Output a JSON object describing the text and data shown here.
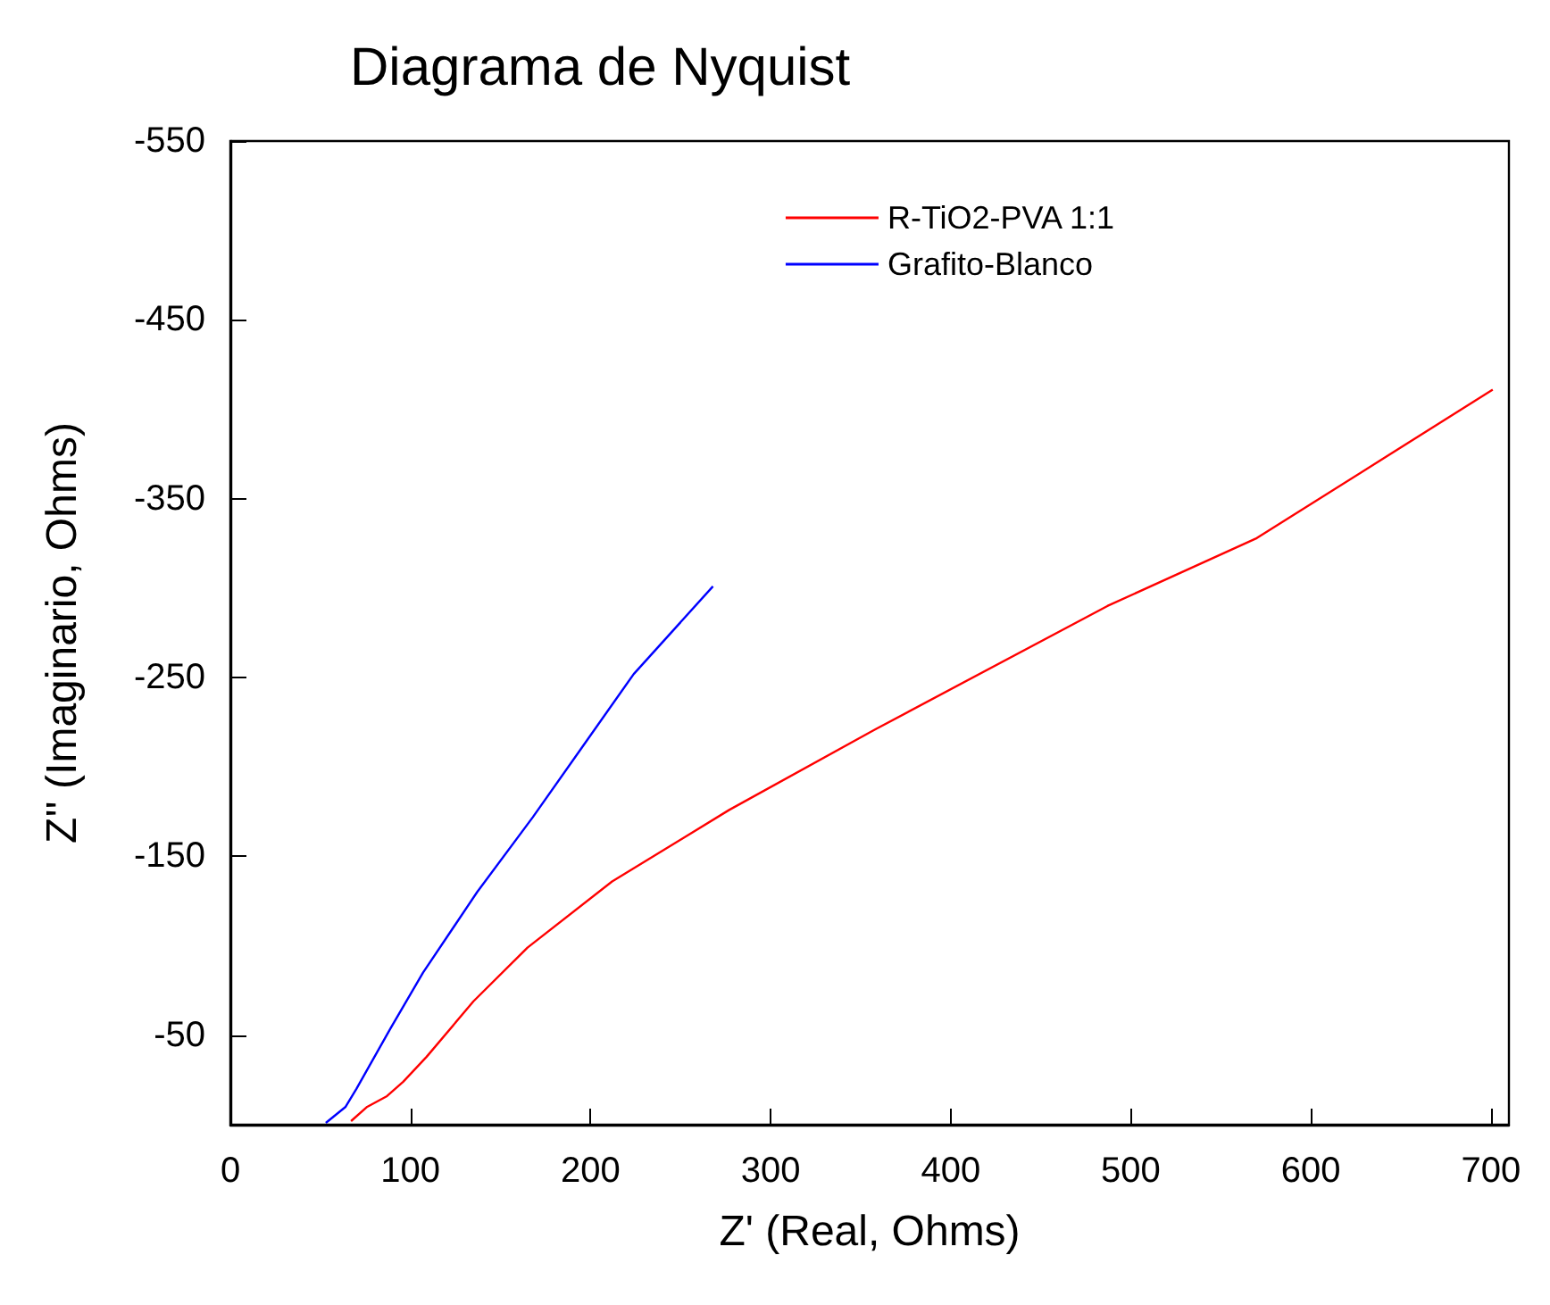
{
  "chart_data": {
    "type": "line",
    "title": "Diagrama de Nyquist",
    "xlabel": "Z' (Real, Ohms)",
    "ylabel": "Z'' (Imaginario, Ohms)",
    "xlim": [
      0,
      710
    ],
    "xticks": [
      0,
      100,
      200,
      300,
      400,
      500,
      600,
      700
    ],
    "ylim": [
      0,
      -550
    ],
    "yticks": [
      -550,
      -450,
      -350,
      -250,
      -150,
      -50
    ],
    "grid": false,
    "legend": "top right",
    "marker": "none",
    "line_style": "solid",
    "series": [
      {
        "name": "R-TiO2-PVA 1:1",
        "color": "#ff0000",
        "x": [
          67,
          76,
          87,
          96,
          109,
          135,
          165,
          212,
          277,
          358,
          487,
          570,
          701
        ],
        "values": [
          -2,
          -10,
          -16,
          -24,
          -38,
          -69,
          -99,
          -136,
          -176,
          -221,
          -290,
          -328,
          -411
        ]
      },
      {
        "name": "Grafito-Blanco",
        "color": "#0000ff",
        "x": [
          53,
          64,
          70,
          89,
          107,
          137,
          168,
          196,
          224,
          268
        ],
        "values": [
          -1,
          -10,
          -20,
          -54,
          -85,
          -130,
          -172,
          -212,
          -252,
          -301
        ]
      }
    ]
  }
}
